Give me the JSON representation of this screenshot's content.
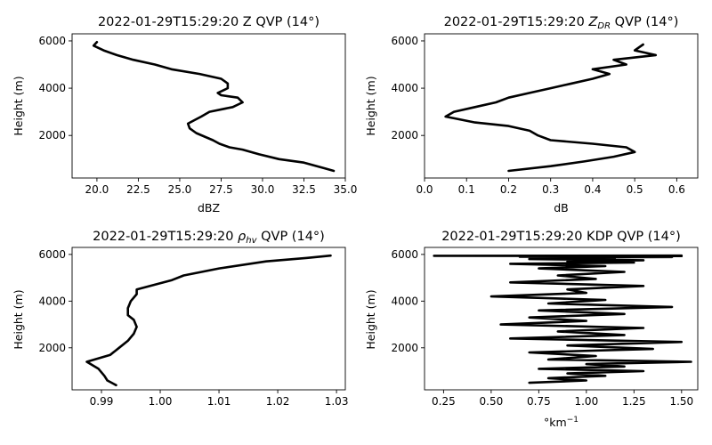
{
  "figure": {
    "background": "#ffffff",
    "line_color": "#000000"
  },
  "chart_data": [
    {
      "type": "line",
      "title": "2022-01-29T15:29:20 Z QVP (14°)",
      "title_main": "2022-01-29T15:29:20 Z QVP (14°)",
      "xlabel": "dBZ",
      "ylabel": "Height (m)",
      "xlim": [
        18.5,
        35.0
      ],
      "ylim": [
        200,
        6300
      ],
      "xticks": [
        20.0,
        22.5,
        25.0,
        27.5,
        30.0,
        32.5,
        35.0
      ],
      "xticklabels": [
        "20.0",
        "22.5",
        "25.0",
        "27.5",
        "30.0",
        "32.5",
        "35.0"
      ],
      "yticks": [
        2000,
        4000,
        6000
      ],
      "yticklabels": [
        "2000",
        "4000",
        "6000"
      ],
      "grid": false,
      "x": [
        34.3,
        33.8,
        32.5,
        31.0,
        29.8,
        28.8,
        28.0,
        27.4,
        27.0,
        26.5,
        26.0,
        25.6,
        25.5,
        25.9,
        26.3,
        26.8,
        28.2,
        28.8,
        28.5,
        27.5,
        27.3,
        27.9,
        27.9,
        27.5,
        26.2,
        24.5,
        23.5,
        22.2,
        21.2,
        20.4,
        19.8,
        20.0
      ],
      "y": [
        500,
        600,
        850,
        1000,
        1200,
        1400,
        1500,
        1650,
        1800,
        1950,
        2100,
        2300,
        2500,
        2650,
        2800,
        3000,
        3200,
        3400,
        3600,
        3700,
        3800,
        4000,
        4200,
        4400,
        4600,
        4800,
        5000,
        5200,
        5400,
        5600,
        5800,
        5950
      ]
    },
    {
      "type": "line",
      "title": "2022-01-29T15:29:20 ZDR QVP (14°)",
      "title_main": "2022-01-29T15:29:20 ",
      "title_symbol": "Z",
      "title_sub": "DR",
      "title_rest": " QVP (14°)",
      "xlabel": "dB",
      "ylabel": "Height (m)",
      "xlim": [
        0.0,
        0.65
      ],
      "ylim": [
        200,
        6300
      ],
      "xticks": [
        0.0,
        0.1,
        0.2,
        0.3,
        0.4,
        0.5,
        0.6
      ],
      "xticklabels": [
        "0.0",
        "0.1",
        "0.2",
        "0.3",
        "0.4",
        "0.5",
        "0.6"
      ],
      "yticks": [
        2000,
        4000,
        6000
      ],
      "yticklabels": [
        "2000",
        "4000",
        "6000"
      ],
      "grid": false,
      "x": [
        0.2,
        0.3,
        0.38,
        0.45,
        0.5,
        0.48,
        0.4,
        0.3,
        0.27,
        0.25,
        0.2,
        0.12,
        0.05,
        0.07,
        0.12,
        0.17,
        0.2,
        0.25,
        0.3,
        0.35,
        0.4,
        0.44,
        0.4,
        0.48,
        0.45,
        0.55,
        0.5,
        0.52
      ],
      "y": [
        500,
        700,
        900,
        1100,
        1300,
        1500,
        1650,
        1800,
        2000,
        2200,
        2400,
        2550,
        2800,
        3000,
        3200,
        3400,
        3600,
        3800,
        4000,
        4200,
        4400,
        4600,
        4800,
        5000,
        5200,
        5400,
        5600,
        5850
      ]
    },
    {
      "type": "line",
      "title": "2022-01-29T15:29:20 ρhv QVP (14°)",
      "title_main": "2022-01-29T15:29:20 ",
      "title_symbol": "ρ",
      "title_sub": "hv",
      "title_rest": " QVP (14°)",
      "xlabel": "",
      "ylabel": "Height (m)",
      "xlim": [
        0.985,
        1.0315
      ],
      "ylim": [
        200,
        6300
      ],
      "xticks": [
        0.99,
        1.0,
        1.01,
        1.02,
        1.03
      ],
      "xticklabels": [
        "0.99",
        "1.00",
        "1.01",
        "1.02",
        "1.03"
      ],
      "yticks": [
        2000,
        4000,
        6000
      ],
      "yticklabels": [
        "2000",
        "4000",
        "6000"
      ],
      "grid": false,
      "x": [
        0.9925,
        0.991,
        0.9905,
        0.9895,
        0.9875,
        0.9915,
        0.993,
        0.9945,
        0.9955,
        0.996,
        0.9955,
        0.9945,
        0.9945,
        0.995,
        0.996,
        0.996,
        0.999,
        1.002,
        1.004,
        1.01,
        1.018,
        1.025,
        1.029
      ],
      "y": [
        400,
        600,
        800,
        1100,
        1400,
        1700,
        2000,
        2300,
        2600,
        2900,
        3200,
        3400,
        3700,
        4000,
        4300,
        4500,
        4700,
        4900,
        5100,
        5400,
        5700,
        5850,
        5950
      ]
    },
    {
      "type": "line",
      "title": "2022-01-29T15:29:20 KDP QVP (14°)",
      "title_main": "2022-01-29T15:29:20 KDP QVP (14°)",
      "xlabel": "°km⁻¹",
      "xlabel_base": "°km",
      "xlabel_sup": "−1",
      "ylabel": "Height (m)",
      "xlim": [
        0.15,
        1.585
      ],
      "ylim": [
        200,
        6300
      ],
      "xticks": [
        0.25,
        0.5,
        0.75,
        1.0,
        1.25,
        1.5
      ],
      "xticklabels": [
        "0.25",
        "0.50",
        "0.75",
        "1.00",
        "1.25",
        "1.50"
      ],
      "yticks": [
        2000,
        4000,
        6000
      ],
      "yticklabels": [
        "2000",
        "4000",
        "6000"
      ],
      "grid": false,
      "x": [
        0.7,
        1.0,
        0.8,
        1.1,
        0.9,
        1.3,
        0.75,
        1.2,
        1.0,
        1.55,
        0.8,
        1.05,
        0.7,
        1.35,
        0.9,
        1.5,
        0.6,
        1.2,
        0.85,
        1.3,
        0.55,
        1.0,
        0.7,
        1.2,
        0.75,
        1.45,
        0.8,
        1.1,
        0.5,
        1.0,
        0.9,
        1.3,
        0.6,
        1.05,
        0.85,
        1.2,
        0.75,
        1.1,
        0.6,
        1.25,
        0.9,
        1.3,
        0.7,
        1.15,
        0.8,
        1.45,
        0.65,
        1.2,
        0.9,
        1.5,
        0.2,
        1.5
      ],
      "y": [
        500,
        600,
        700,
        800,
        900,
        1000,
        1100,
        1200,
        1300,
        1400,
        1500,
        1650,
        1800,
        1950,
        2100,
        2250,
        2400,
        2550,
        2700,
        2850,
        3000,
        3150,
        3300,
        3450,
        3600,
        3750,
        3900,
        4050,
        4200,
        4350,
        4500,
        4650,
        4800,
        4950,
        5100,
        5250,
        5400,
        5500,
        5600,
        5650,
        5700,
        5750,
        5800,
        5850,
        5870,
        5890,
        5900,
        5910,
        5920,
        5930,
        5940,
        5950
      ]
    }
  ]
}
